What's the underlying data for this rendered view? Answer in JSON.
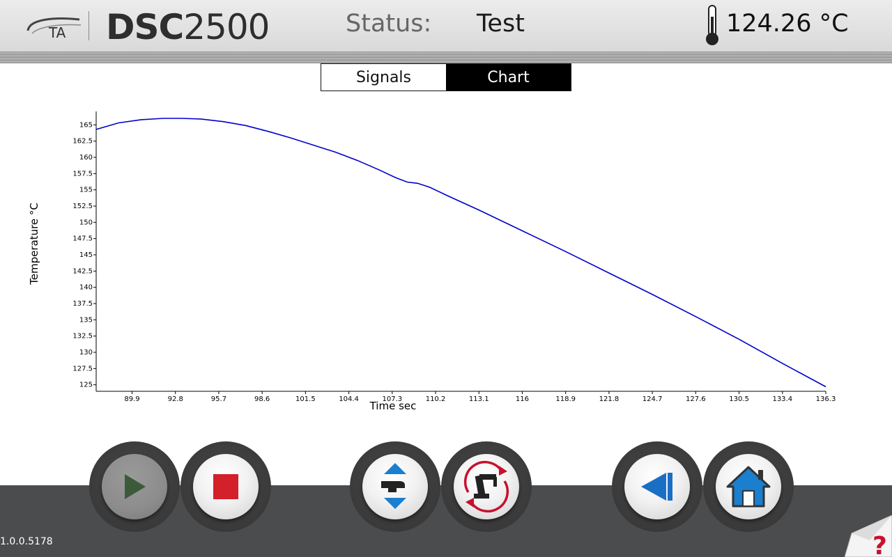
{
  "header": {
    "logo_text": "TA",
    "brand_bold": "DSC",
    "brand_light": "2500",
    "status_label": "Status:",
    "status_value": "Test",
    "temperature": "124.26 °C"
  },
  "tabs": [
    {
      "label": "Signals",
      "active": false
    },
    {
      "label": "Chart",
      "active": true
    }
  ],
  "chart_data": {
    "type": "line",
    "title": "",
    "xlabel": "Time sec",
    "ylabel": "Temperature °C",
    "xlim": [
      87.5,
      136.3
    ],
    "ylim": [
      124,
      166
    ],
    "x_ticks": [
      89.9,
      92.8,
      95.7,
      98.6,
      101.5,
      104.4,
      107.3,
      110.2,
      113.1,
      116,
      118.9,
      121.8,
      124.7,
      127.6,
      130.5,
      133.4,
      136.3
    ],
    "y_ticks": [
      125,
      127.5,
      130,
      132.5,
      135,
      137.5,
      140,
      142.5,
      145,
      147.5,
      150,
      152.5,
      155,
      157.5,
      160,
      162.5,
      165
    ],
    "series": [
      {
        "color": "#0000cc",
        "x": [
          87.5,
          89.0,
          90.5,
          92.0,
          93.2,
          94.5,
          96.0,
          97.5,
          99.0,
          100.5,
          102.0,
          103.5,
          105.0,
          106.5,
          107.5,
          108.3,
          109.0,
          109.8,
          111.0,
          113.1,
          116.0,
          118.9,
          121.8,
          124.7,
          127.6,
          130.5,
          133.4,
          136.3
        ],
        "y": [
          164.3,
          165.3,
          165.8,
          166.0,
          166.0,
          165.9,
          165.5,
          164.9,
          164.0,
          163.0,
          161.9,
          160.8,
          159.5,
          158.0,
          156.9,
          156.2,
          156.0,
          155.4,
          154.1,
          151.9,
          148.7,
          145.5,
          142.2,
          138.9,
          135.5,
          132.0,
          128.3,
          124.7
        ]
      }
    ],
    "grid": false
  },
  "toolbar": {
    "buttons": [
      {
        "name": "play-button",
        "icon": "play-icon",
        "enabled": false
      },
      {
        "name": "stop-button",
        "icon": "stop-icon",
        "enabled": true
      },
      {
        "name": "lid-button",
        "icon": "lid-up-down-icon",
        "enabled": true
      },
      {
        "name": "autosampler-button",
        "icon": "robot-arm-icon",
        "enabled": true
      },
      {
        "name": "back-button",
        "icon": "back-icon",
        "enabled": true
      },
      {
        "name": "home-button",
        "icon": "home-icon",
        "enabled": true
      }
    ]
  },
  "version": "1.0.0.5178",
  "colors": {
    "accent_blue": "#1a7fcf",
    "stop_red": "#d3202a",
    "play_green": "#3c5a3a",
    "bottom_bar": "#4b4c4e",
    "help_red": "#c8102e"
  }
}
